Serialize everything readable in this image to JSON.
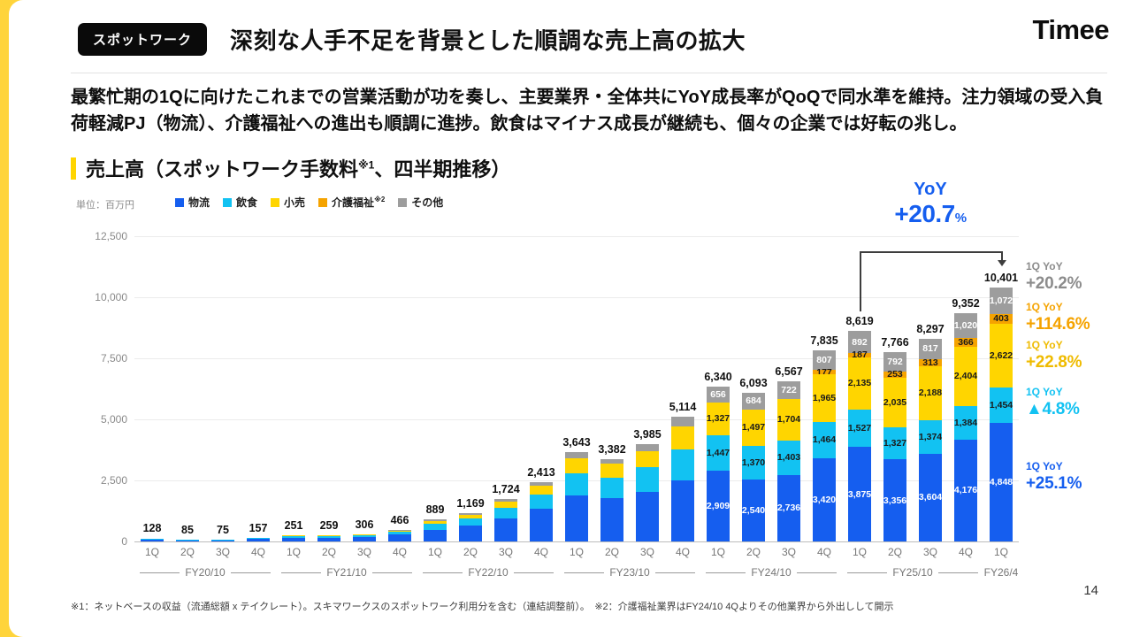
{
  "slide": {
    "badge_label": "スポットワーク",
    "title": "深刻な人手不足を背景とした順調な売上高の拡大",
    "logo_text": "Timee",
    "summary": "最繁忙期の1Qに向けたこれまでの営業活動が功を奏し、主要業界・全体共にYoY成長率がQoQで同水準を維持。注力領域の受入負荷軽減PJ（物流）、介護福祉への進出も順調に進捗。飲食はマイナス成長が継続も、個々の企業では好転の兆し。",
    "section_title_pre": "売上高（スポットワーク手数料",
    "section_title_sup": "※1",
    "section_title_post": "、四半期推移）",
    "footnote": "※1：ネットベースの収益（流通総額 x テイクレート）。スキマワークスのスポットワーク利用分を含む（連結調整前）。　※2：介護福祉業界はFY24/10 4Qよりその他業界から外出しして開示",
    "page_number": "14"
  },
  "chart_data": {
    "type": "bar",
    "stacked": true,
    "unit_label": "単位：百万円",
    "ylim": [
      0,
      12500
    ],
    "yticks": [
      0,
      2500,
      5000,
      7500,
      10000,
      12500
    ],
    "legend": [
      {
        "label": "物流",
        "sup": "",
        "color": "#155EEF"
      },
      {
        "label": "飲食",
        "sup": "",
        "color": "#12C2F2"
      },
      {
        "label": "小売",
        "sup": "",
        "color": "#FFD500"
      },
      {
        "label": "介護福祉",
        "sup": "※2",
        "color": "#F5A300"
      },
      {
        "label": "その他",
        "sup": "",
        "color": "#9D9D9D"
      }
    ],
    "groups": [
      {
        "label": "FY20/10",
        "count": 4
      },
      {
        "label": "FY21/10",
        "count": 4
      },
      {
        "label": "FY22/10",
        "count": 4
      },
      {
        "label": "FY23/10",
        "count": 4
      },
      {
        "label": "FY24/10",
        "count": 4
      },
      {
        "label": "FY25/10",
        "count": 4
      },
      {
        "label": "FY26/4",
        "count": 1
      }
    ],
    "quarter_labels": [
      "1Q",
      "2Q",
      "3Q",
      "4Q",
      "1Q",
      "2Q",
      "3Q",
      "4Q",
      "1Q",
      "2Q",
      "3Q",
      "4Q",
      "1Q",
      "2Q",
      "3Q",
      "4Q",
      "1Q",
      "2Q",
      "3Q",
      "4Q",
      "1Q",
      "2Q",
      "3Q",
      "4Q",
      "1Q"
    ],
    "series_order": [
      "物流",
      "飲食",
      "小売",
      "介護福祉",
      "その他"
    ],
    "bars": [
      {
        "total": 128,
        "values": [
          77,
          32,
          13,
          0,
          6
        ],
        "has_segment_labels": false
      },
      {
        "total": 85,
        "values": [
          51,
          21,
          9,
          0,
          4
        ],
        "has_segment_labels": false
      },
      {
        "total": 75,
        "values": [
          45,
          19,
          8,
          0,
          3
        ],
        "has_segment_labels": false
      },
      {
        "total": 157,
        "values": [
          94,
          39,
          16,
          0,
          8
        ],
        "has_segment_labels": false
      },
      {
        "total": 251,
        "values": [
          151,
          63,
          25,
          0,
          12
        ],
        "has_segment_labels": false
      },
      {
        "total": 259,
        "values": [
          155,
          65,
          26,
          0,
          13
        ],
        "has_segment_labels": false
      },
      {
        "total": 306,
        "values": [
          184,
          76,
          31,
          0,
          15
        ],
        "has_segment_labels": false
      },
      {
        "total": 466,
        "values": [
          280,
          116,
          47,
          0,
          23
        ],
        "has_segment_labels": false
      },
      {
        "total": 889,
        "values": [
          489,
          222,
          124,
          0,
          54
        ],
        "has_segment_labels": false
      },
      {
        "total": 1169,
        "values": [
          643,
          292,
          164,
          0,
          70
        ],
        "has_segment_labels": false
      },
      {
        "total": 1724,
        "values": [
          948,
          431,
          241,
          0,
          104
        ],
        "has_segment_labels": false
      },
      {
        "total": 2413,
        "values": [
          1327,
          603,
          338,
          0,
          145
        ],
        "has_segment_labels": false
      },
      {
        "total": 3643,
        "values": [
          1894,
          911,
          619,
          0,
          219
        ],
        "has_segment_labels": false
      },
      {
        "total": 3382,
        "values": [
          1758,
          846,
          575,
          0,
          203
        ],
        "has_segment_labels": false
      },
      {
        "total": 3985,
        "values": [
          2032,
          996,
          678,
          0,
          279
        ],
        "has_segment_labels": false
      },
      {
        "total": 5114,
        "values": [
          2506,
          1279,
          920,
          0,
          409
        ],
        "has_segment_labels": false
      },
      {
        "total": 6340,
        "values": [
          2909,
          1447,
          1327,
          0,
          656
        ],
        "has_segment_labels": true
      },
      {
        "total": 6093,
        "values": [
          2540,
          1370,
          1497,
          0,
          684
        ],
        "has_segment_labels": true
      },
      {
        "total": 6567,
        "values": [
          2736,
          1403,
          1704,
          0,
          722
        ],
        "has_segment_labels": true
      },
      {
        "total": 7835,
        "values": [
          3420,
          1464,
          1965,
          177,
          807
        ],
        "has_segment_labels": true
      },
      {
        "total": 8619,
        "values": [
          3875,
          1527,
          2135,
          187,
          892
        ],
        "has_segment_labels": true
      },
      {
        "total": 7766,
        "values": [
          3356,
          1327,
          2035,
          253,
          792
        ],
        "has_segment_labels": true
      },
      {
        "total": 8297,
        "values": [
          3604,
          1374,
          2188,
          313,
          817
        ],
        "has_segment_labels": true
      },
      {
        "total": 9352,
        "values": [
          4176,
          1384,
          2404,
          366,
          1020
        ],
        "has_segment_labels": true
      },
      {
        "total": 10401,
        "values": [
          4848,
          1454,
          2622,
          403,
          1072
        ],
        "has_segment_labels": true
      }
    ],
    "yoy": {
      "label": "YoY",
      "value": "+20.7",
      "unit": "%"
    },
    "side_annotations": [
      {
        "label": "1Q YoY",
        "value": "+20.2%",
        "color": "#8C8C8C"
      },
      {
        "label": "1Q YoY",
        "value": "+114.6%",
        "color": "#F5A300"
      },
      {
        "label": "1Q YoY",
        "value": "+22.8%",
        "color": "#EFBB00"
      },
      {
        "label": "1Q YoY",
        "value": "▲4.8%",
        "color": "#12C2F2"
      },
      {
        "label": "1Q YoY",
        "value": "+25.1%",
        "color": "#155EEF"
      }
    ]
  }
}
